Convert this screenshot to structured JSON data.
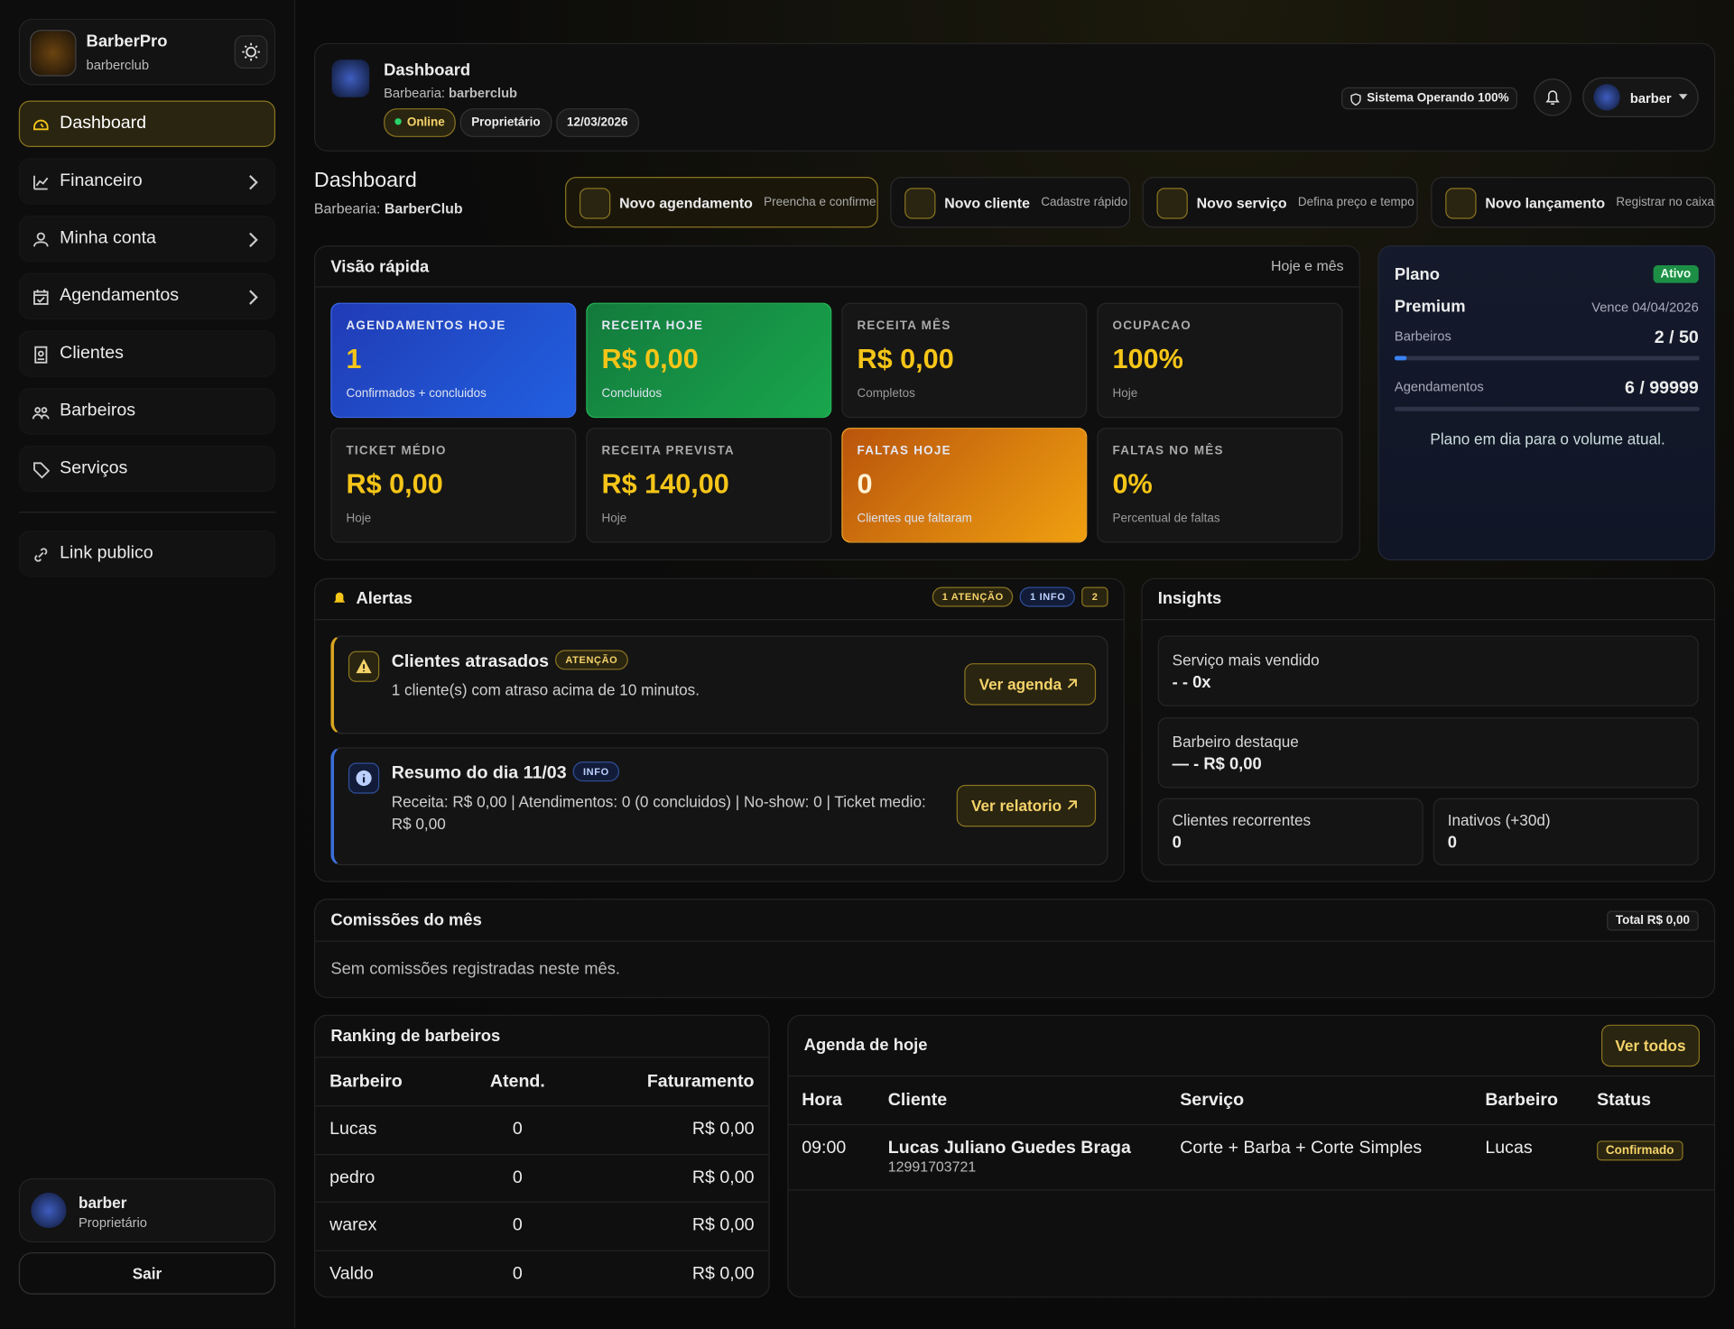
{
  "sidebar": {
    "brand": "BarberPro",
    "shop": "barberclub",
    "nav": [
      "Dashboard",
      "Financeiro",
      "Minha conta",
      "Agendamentos",
      "Clientes",
      "Barbeiros",
      "Serviços"
    ],
    "link": "Link publico",
    "user": {
      "name": "barber",
      "role": "Proprietário"
    },
    "logout": "Sair"
  },
  "header": {
    "title": "Dashboard",
    "shop_label": "Barbearia:",
    "shop": "barberclub",
    "badges": [
      "Online",
      "Proprietário",
      "12/03/2026"
    ],
    "status": "Sistema Operando 100%",
    "user": "barber"
  },
  "page": {
    "title": "Dashboard",
    "shop_label": "Barbearia:",
    "shop": "BarberClub"
  },
  "actions": [
    {
      "title": "Novo agendamento",
      "desc": "Preencha e confirme"
    },
    {
      "title": "Novo cliente",
      "desc": "Cadastre rápido"
    },
    {
      "title": "Novo serviço",
      "desc": "Defina preço e tempo"
    },
    {
      "title": "Novo lançamento",
      "desc": "Registrar no caixa"
    }
  ],
  "quick_view": {
    "title": "Visão rápida",
    "period": "Hoje e mês",
    "cards": [
      {
        "label": "AGENDAMENTOS HOJE",
        "value": "1",
        "note": "Confirmados + concluidos"
      },
      {
        "label": "RECEITA HOJE",
        "value": "R$ 0,00",
        "note": "Concluidos"
      },
      {
        "label": "RECEITA MÊS",
        "value": "R$ 0,00",
        "note": "Completos"
      },
      {
        "label": "OCUPACAO",
        "value": "100%",
        "note": "Hoje"
      },
      {
        "label": "TICKET MÉDIO",
        "value": "R$ 0,00",
        "note": "Hoje"
      },
      {
        "label": "RECEITA PREVISTA",
        "value": "R$ 140,00",
        "note": "Hoje"
      },
      {
        "label": "FALTAS HOJE",
        "value": "0",
        "note": "Clientes que faltaram"
      },
      {
        "label": "FALTAS NO MÊS",
        "value": "0%",
        "note": "Percentual de faltas"
      }
    ]
  },
  "plan": {
    "title": "Plano",
    "badge": "Ativo",
    "name": "Premium",
    "expires": "Vence 04/04/2026",
    "rows": [
      {
        "label": "Barbeiros",
        "value": "2 / 50"
      },
      {
        "label": "Agendamentos",
        "value": "6 / 99999"
      }
    ],
    "note": "Plano em dia para o volume atual."
  },
  "alerts": {
    "title": "Alertas",
    "counts": [
      "1 ATENÇÃO",
      "1 INFO",
      "2"
    ],
    "items": [
      {
        "title": "Clientes atrasados",
        "tag": "ATENÇÃO",
        "text": "1 cliente(s) com atraso acima de 10 minutos.",
        "button": "Ver agenda"
      },
      {
        "title": "Resumo do dia 11/03",
        "tag": "INFO",
        "text": "Receita: R$ 0,00 | Atendimentos: 0 (0 concluidos) | No-show: 0 | Ticket medio: R$ 0,00",
        "button": "Ver relatorio"
      }
    ]
  },
  "insights": {
    "title": "Insights",
    "items": [
      {
        "label": "Serviço mais vendido",
        "value": "- - 0x"
      },
      {
        "label": "Barbeiro destaque",
        "value": "— - R$ 0,00"
      },
      {
        "label": "Clientes recorrentes",
        "value": "0"
      },
      {
        "label": "Inativos (+30d)",
        "value": "0"
      }
    ]
  },
  "commissions": {
    "title": "Comissões do mês",
    "total": "Total R$ 0,00",
    "empty": "Sem comissões registradas neste mês."
  },
  "ranking": {
    "title": "Ranking de barbeiros",
    "columns": [
      "Barbeiro",
      "Atend.",
      "Faturamento"
    ],
    "rows": [
      [
        "Lucas",
        "0",
        "R$ 0,00"
      ],
      [
        "pedro",
        "0",
        "R$ 0,00"
      ],
      [
        "warex",
        "0",
        "R$ 0,00"
      ],
      [
        "Valdo",
        "0",
        "R$ 0,00"
      ]
    ]
  },
  "agenda": {
    "title": "Agenda de hoje",
    "button": "Ver todos",
    "columns": [
      "Hora",
      "Cliente",
      "Serviço",
      "Barbeiro",
      "Status"
    ],
    "rows": [
      {
        "time": "09:00",
        "client": "Lucas Juliano Guedes Braga",
        "phone": "12991703721",
        "service": "Corte + Barba + Corte Simples",
        "barber": "Lucas",
        "status": "Confirmado"
      }
    ]
  }
}
